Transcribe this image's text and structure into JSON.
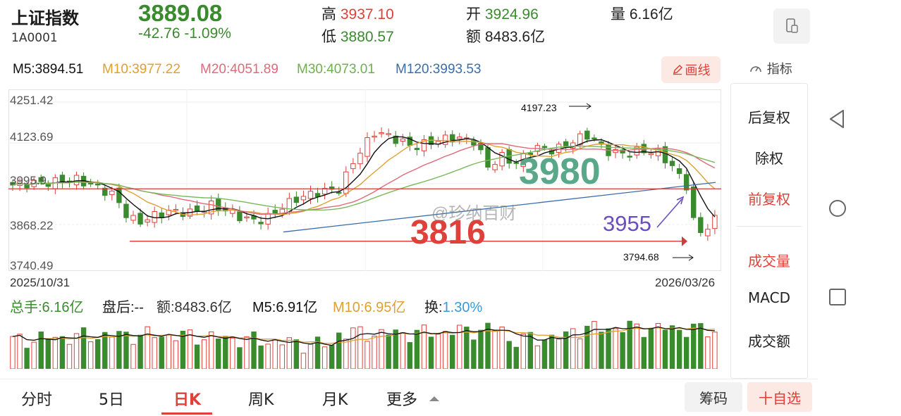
{
  "header": {
    "name": "上证指数",
    "code": "1A0001",
    "price": "3889.08",
    "change": "-42.76  -1.09%",
    "high_label": "高",
    "high": "3937.10",
    "low_label": "低",
    "low": "3880.57",
    "open_label": "开",
    "open": "3924.96",
    "amount_label": "额",
    "amount": "8483.6亿",
    "volume_label": "量",
    "volume": "6.16亿"
  },
  "ma": {
    "m5": "M5:3894.51",
    "m10": "M10:3977.22",
    "m20": "M20:4051.89",
    "m30": "M30:4073.01",
    "m120": "M120:3993.53",
    "draw_button": "画线"
  },
  "indicator_link": "指标",
  "side_menu": [
    "后复权",
    "除权",
    "前复权",
    "成交量",
    "MACD",
    "成交额"
  ],
  "y_axis": [
    "4251.42",
    "4123.69",
    "3995.9",
    "3868.22",
    "3740.49"
  ],
  "dates": {
    "start": "2025/10/31",
    "end": "2026/03/26"
  },
  "annotations": {
    "high_mark": "4197.23",
    "low_mark": "3794.68",
    "big_green": "3980",
    "big_red": "3816",
    "purple": "3955",
    "watermark": "@珍纳百财"
  },
  "volume_stats": {
    "total": "总手:6.16亿",
    "after": "盘后:--",
    "amount": "额:8483.6亿",
    "m5": "M5:6.91亿",
    "m10": "M10:6.95亿",
    "turnover_label": "换:",
    "turnover": "1.30%"
  },
  "tabs": [
    "分时",
    "5日",
    "日K",
    "周K",
    "月K",
    "更多"
  ],
  "active_tab": "日K",
  "chip_button": "筹码",
  "watch_button": "十自选",
  "colors": {
    "up": "#e0403a",
    "down": "#3a8a2e",
    "m5": "#111111",
    "m10": "#e0a030",
    "m20": "#e06a7a",
    "m30": "#7ab85a",
    "m120": "#3a6ea8"
  }
}
